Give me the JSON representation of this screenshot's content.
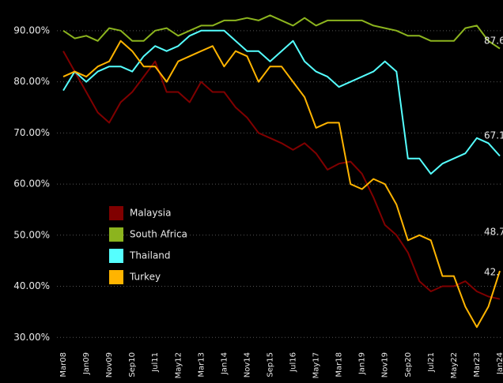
{
  "chart_data": {
    "type": "line",
    "categories": [
      "Mar08",
      null,
      "Jan09",
      null,
      "Nov09",
      null,
      "Sep10",
      null,
      "Jul11",
      null,
      "May12",
      null,
      "Mar13",
      null,
      "Jan14",
      null,
      "Nov14",
      null,
      "Sep15",
      null,
      "Jul16",
      null,
      "May17",
      null,
      "Mar18",
      null,
      "Jan19",
      null,
      "Nov19",
      null,
      "Sep20",
      null,
      "Jul21",
      null,
      "May22",
      null,
      "Mar23",
      null,
      "Jan24"
    ],
    "series": [
      {
        "name": "Malaysia",
        "color": "#800000",
        "values": [
          86,
          82,
          78,
          74,
          72,
          76,
          78,
          81,
          84,
          78,
          78,
          76,
          80,
          78,
          78,
          75,
          73,
          70,
          69,
          68,
          66.7,
          68,
          66,
          62.8,
          64,
          64.4,
          62,
          57.4,
          52,
          50,
          46.6,
          41,
          39,
          40,
          40,
          41,
          39,
          38,
          37.5
        ]
      },
      {
        "name": "South Africa",
        "color": "#8cb41e",
        "values": [
          90,
          88.5,
          89,
          88,
          90.5,
          90,
          88,
          88,
          90,
          90.5,
          89,
          90,
          91,
          91,
          92,
          92,
          92.5,
          92,
          93,
          92,
          91,
          92.5,
          91,
          92,
          92,
          92,
          92,
          91,
          90.5,
          90,
          89,
          89,
          88,
          88,
          88,
          90.5,
          91,
          88,
          86.5
        ]
      },
      {
        "name": "Thailand",
        "color": "#55ffff",
        "values": [
          78.3,
          82,
          80,
          82,
          83,
          83,
          82,
          85,
          87,
          86,
          87,
          89,
          90,
          90,
          90,
          88,
          86,
          86,
          84,
          86,
          88,
          84,
          82,
          81,
          79,
          80,
          81,
          82,
          84,
          82,
          65,
          65,
          62,
          64,
          65,
          66,
          69,
          68,
          65.5
        ]
      },
      {
        "name": "Turkey",
        "color": "#ffb400",
        "values": [
          81,
          82,
          81,
          83,
          84,
          88,
          86,
          83,
          83,
          80,
          84,
          85,
          86,
          87,
          83,
          86,
          85,
          80,
          83,
          83,
          80,
          77,
          71,
          72,
          72,
          60,
          59,
          61,
          60,
          56,
          49,
          50,
          49,
          42,
          42,
          36,
          32,
          36,
          43
        ]
      }
    ],
    "annotations": [
      "87.6",
      "67.1",
      "48.7",
      "42."
    ],
    "ylim": [
      28.5,
      96
    ],
    "yticks": [
      {
        "value": 30,
        "label": "30.00%"
      },
      {
        "value": 40,
        "label": "40.00%"
      },
      {
        "value": 50,
        "label": "50.00%"
      },
      {
        "value": 60,
        "label": "60.00%"
      },
      {
        "value": 70,
        "label": "70.00%"
      },
      {
        "value": 80,
        "label": "80.00%"
      },
      {
        "value": 90,
        "label": "90.00%"
      }
    ],
    "grid": true
  }
}
